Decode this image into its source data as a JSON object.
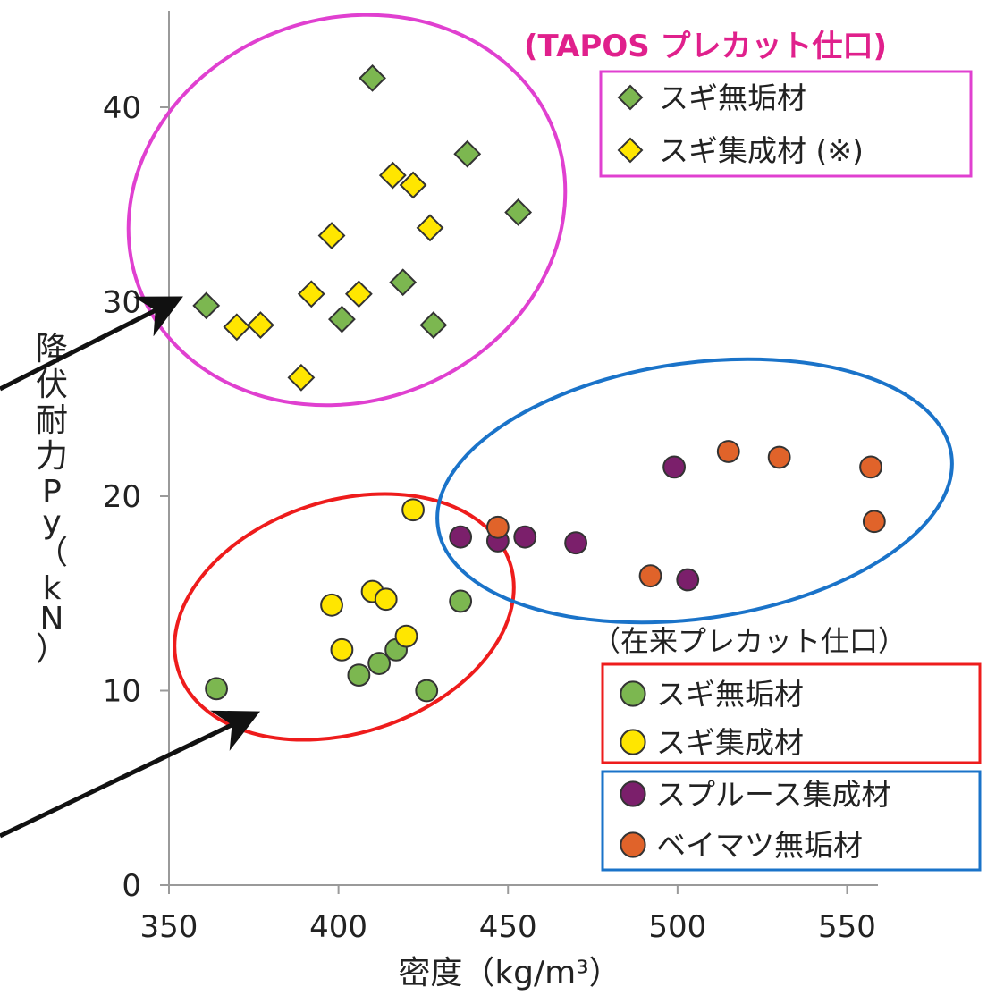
{
  "chart_data": {
    "type": "scatter",
    "xlabel": "密度（kg/m³）",
    "ylabel": "降伏耐力Py（kN）",
    "xlim": [
      350,
      560
    ],
    "ylim": [
      0,
      45
    ],
    "x_ticks": [
      350,
      400,
      450,
      500,
      550
    ],
    "y_ticks": [
      0,
      10,
      20,
      30,
      40
    ],
    "grid": false,
    "legend_groups": [
      {
        "heading": "(TAPOS プレカット仕口)",
        "heading_color": "#e0208c",
        "box_color": "#e040d0",
        "placement": "top-right",
        "entries": [
          {
            "series": 0,
            "label": "スギ無垢材"
          },
          {
            "series": 1,
            "label": "スギ集成材 (※)"
          }
        ]
      },
      {
        "heading": "（在来プレカット仕口）",
        "heading_color": "#222222",
        "box_color": "#ee1c1c",
        "placement": "bottom-right",
        "entries": [
          {
            "series": 2,
            "label": "スギ無垢材"
          },
          {
            "series": 3,
            "label": "スギ集成材"
          }
        ]
      },
      {
        "heading": "",
        "box_color": "#1a73c9",
        "placement": "bottom-right",
        "entries": [
          {
            "series": 4,
            "label": "スプルース集成材"
          },
          {
            "series": 5,
            "label": "ベイマツ無垢材"
          }
        ]
      }
    ],
    "series": [
      {
        "name": "スギ無垢材",
        "marker": "diamond",
        "color": "#7cb750",
        "points": [
          [
            361,
            29.8
          ],
          [
            401,
            29.1
          ],
          [
            410,
            41.5
          ],
          [
            419,
            31
          ],
          [
            428,
            28.8
          ],
          [
            438,
            37.6
          ],
          [
            453,
            34.6
          ]
        ]
      },
      {
        "name": "スギ集成材 (※)",
        "marker": "diamond",
        "color": "#ffe600",
        "points": [
          [
            370,
            28.7
          ],
          [
            377,
            28.8
          ],
          [
            389,
            26.1
          ],
          [
            392,
            30.4
          ],
          [
            398,
            33.4
          ],
          [
            406,
            30.4
          ],
          [
            416,
            36.5
          ],
          [
            422,
            36
          ],
          [
            427,
            33.8
          ]
        ]
      },
      {
        "name": "スギ無垢材",
        "marker": "circle",
        "color": "#7cb750",
        "points": [
          [
            364,
            10.1
          ],
          [
            406,
            10.8
          ],
          [
            412,
            11.4
          ],
          [
            417,
            12.1
          ],
          [
            426,
            10
          ],
          [
            436,
            14.6
          ]
        ]
      },
      {
        "name": "スギ集成材",
        "marker": "circle",
        "color": "#ffe600",
        "points": [
          [
            398,
            14.4
          ],
          [
            401,
            12.1
          ],
          [
            410,
            15.1
          ],
          [
            414,
            14.7
          ],
          [
            420,
            12.8
          ],
          [
            422,
            19.3
          ]
        ]
      },
      {
        "name": "スプルース集成材",
        "marker": "circle",
        "color": "#7b1f6b",
        "points": [
          [
            436,
            17.9
          ],
          [
            447,
            17.7
          ],
          [
            455,
            17.9
          ],
          [
            470,
            17.6
          ],
          [
            499,
            21.5
          ],
          [
            503,
            15.7
          ]
        ]
      },
      {
        "name": "ベイマツ無垢材",
        "marker": "circle",
        "color": "#e0632a",
        "points": [
          [
            447,
            18.4
          ],
          [
            492,
            15.9
          ],
          [
            515,
            22.3
          ],
          [
            530,
            22
          ],
          [
            557,
            21.5
          ],
          [
            558,
            18.7
          ]
        ]
      }
    ]
  }
}
